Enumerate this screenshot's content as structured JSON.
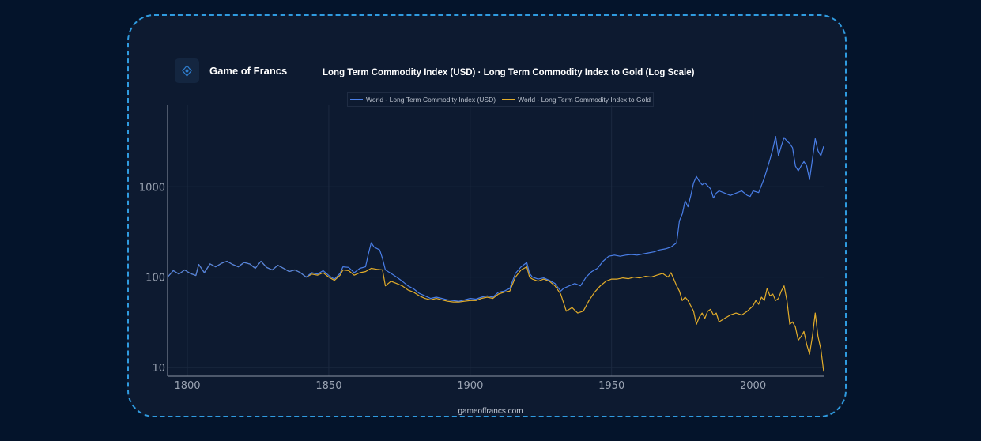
{
  "brand": {
    "name": "Game of Francs",
    "logo_icon": "compass-logo-icon",
    "footer": "gameoffrancs.com"
  },
  "colors": {
    "background": "#04142b",
    "card": "#0d1a30",
    "border": "#2f9be0",
    "usd_series": "#4a7fe8",
    "gold_series": "#e3ad2a"
  },
  "chart_data": {
    "type": "line",
    "title": "Long Term Commodity Index (USD) · Long Term Commodity Index to Gold (Log Scale)",
    "xlabel": "",
    "ylabel": "",
    "y_scale": "log",
    "xlim": [
      1793,
      2025
    ],
    "ylim": [
      8,
      8000
    ],
    "x_ticks": [
      1800,
      1850,
      1900,
      1950,
      2000
    ],
    "y_ticks": [
      10,
      100,
      1000
    ],
    "grid": true,
    "legend_position": "top",
    "series": [
      {
        "name": "World - Long Term Commodity Index (USD)",
        "color": "#4a7fe8",
        "points": [
          [
            1793,
            100
          ],
          [
            1795,
            118
          ],
          [
            1797,
            108
          ],
          [
            1799,
            120
          ],
          [
            1801,
            110
          ],
          [
            1803,
            104
          ],
          [
            1804,
            138
          ],
          [
            1806,
            112
          ],
          [
            1808,
            140
          ],
          [
            1810,
            130
          ],
          [
            1812,
            142
          ],
          [
            1814,
            150
          ],
          [
            1816,
            138
          ],
          [
            1818,
            130
          ],
          [
            1820,
            145
          ],
          [
            1822,
            140
          ],
          [
            1824,
            125
          ],
          [
            1826,
            150
          ],
          [
            1828,
            128
          ],
          [
            1830,
            120
          ],
          [
            1832,
            135
          ],
          [
            1834,
            125
          ],
          [
            1836,
            115
          ],
          [
            1838,
            120
          ],
          [
            1840,
            112
          ],
          [
            1842,
            100
          ],
          [
            1844,
            112
          ],
          [
            1846,
            108
          ],
          [
            1848,
            118
          ],
          [
            1850,
            104
          ],
          [
            1852,
            95
          ],
          [
            1854,
            110
          ],
          [
            1855,
            130
          ],
          [
            1857,
            128
          ],
          [
            1859,
            112
          ],
          [
            1861,
            125
          ],
          [
            1863,
            130
          ],
          [
            1864,
            180
          ],
          [
            1865,
            240
          ],
          [
            1866,
            215
          ],
          [
            1868,
            200
          ],
          [
            1869,
            160
          ],
          [
            1870,
            120
          ],
          [
            1872,
            110
          ],
          [
            1874,
            100
          ],
          [
            1876,
            90
          ],
          [
            1878,
            80
          ],
          [
            1880,
            74
          ],
          [
            1882,
            66
          ],
          [
            1884,
            62
          ],
          [
            1886,
            58
          ],
          [
            1888,
            60
          ],
          [
            1890,
            58
          ],
          [
            1892,
            56
          ],
          [
            1894,
            55
          ],
          [
            1896,
            54
          ],
          [
            1898,
            56
          ],
          [
            1900,
            58
          ],
          [
            1902,
            57
          ],
          [
            1904,
            60
          ],
          [
            1906,
            62
          ],
          [
            1908,
            60
          ],
          [
            1910,
            68
          ],
          [
            1912,
            70
          ],
          [
            1914,
            75
          ],
          [
            1916,
            110
          ],
          [
            1918,
            130
          ],
          [
            1920,
            145
          ],
          [
            1921,
            110
          ],
          [
            1922,
            100
          ],
          [
            1924,
            95
          ],
          [
            1926,
            98
          ],
          [
            1928,
            92
          ],
          [
            1930,
            85
          ],
          [
            1932,
            70
          ],
          [
            1933,
            75
          ],
          [
            1935,
            80
          ],
          [
            1937,
            85
          ],
          [
            1939,
            80
          ],
          [
            1941,
            100
          ],
          [
            1943,
            115
          ],
          [
            1945,
            125
          ],
          [
            1947,
            150
          ],
          [
            1949,
            170
          ],
          [
            1951,
            175
          ],
          [
            1953,
            170
          ],
          [
            1955,
            175
          ],
          [
            1957,
            178
          ],
          [
            1959,
            175
          ],
          [
            1961,
            180
          ],
          [
            1963,
            185
          ],
          [
            1965,
            190
          ],
          [
            1967,
            200
          ],
          [
            1969,
            205
          ],
          [
            1971,
            215
          ],
          [
            1973,
            240
          ],
          [
            1974,
            420
          ],
          [
            1975,
            500
          ],
          [
            1976,
            700
          ],
          [
            1977,
            600
          ],
          [
            1978,
            800
          ],
          [
            1979,
            1100
          ],
          [
            1980,
            1300
          ],
          [
            1981,
            1150
          ],
          [
            1982,
            1050
          ],
          [
            1983,
            1100
          ],
          [
            1985,
            950
          ],
          [
            1986,
            750
          ],
          [
            1987,
            850
          ],
          [
            1988,
            900
          ],
          [
            1990,
            850
          ],
          [
            1992,
            800
          ],
          [
            1994,
            850
          ],
          [
            1996,
            900
          ],
          [
            1998,
            800
          ],
          [
            1999,
            780
          ],
          [
            2000,
            900
          ],
          [
            2002,
            860
          ],
          [
            2004,
            1250
          ],
          [
            2006,
            2000
          ],
          [
            2007,
            2600
          ],
          [
            2008,
            3600
          ],
          [
            2009,
            2200
          ],
          [
            2010,
            2800
          ],
          [
            2011,
            3500
          ],
          [
            2012,
            3200
          ],
          [
            2013,
            3000
          ],
          [
            2014,
            2700
          ],
          [
            2015,
            1700
          ],
          [
            2016,
            1500
          ],
          [
            2017,
            1700
          ],
          [
            2018,
            1900
          ],
          [
            2019,
            1700
          ],
          [
            2020,
            1200
          ],
          [
            2021,
            2000
          ],
          [
            2022,
            3400
          ],
          [
            2023,
            2500
          ],
          [
            2024,
            2200
          ],
          [
            2025,
            2800
          ]
        ]
      },
      {
        "name": "World - Long Term Commodity Index to Gold",
        "color": "#e3ad2a",
        "points": [
          [
            1793,
            100
          ],
          [
            1795,
            118
          ],
          [
            1797,
            108
          ],
          [
            1799,
            120
          ],
          [
            1801,
            110
          ],
          [
            1803,
            104
          ],
          [
            1804,
            138
          ],
          [
            1806,
            112
          ],
          [
            1808,
            140
          ],
          [
            1810,
            130
          ],
          [
            1812,
            142
          ],
          [
            1814,
            150
          ],
          [
            1816,
            138
          ],
          [
            1818,
            130
          ],
          [
            1820,
            145
          ],
          [
            1822,
            140
          ],
          [
            1824,
            125
          ],
          [
            1826,
            150
          ],
          [
            1828,
            128
          ],
          [
            1830,
            120
          ],
          [
            1832,
            135
          ],
          [
            1834,
            125
          ],
          [
            1836,
            115
          ],
          [
            1838,
            120
          ],
          [
            1840,
            112
          ],
          [
            1842,
            100
          ],
          [
            1844,
            108
          ],
          [
            1846,
            105
          ],
          [
            1848,
            112
          ],
          [
            1850,
            100
          ],
          [
            1852,
            92
          ],
          [
            1854,
            105
          ],
          [
            1855,
            120
          ],
          [
            1857,
            118
          ],
          [
            1859,
            105
          ],
          [
            1861,
            112
          ],
          [
            1863,
            115
          ],
          [
            1865,
            125
          ],
          [
            1867,
            122
          ],
          [
            1869,
            120
          ],
          [
            1870,
            80
          ],
          [
            1872,
            90
          ],
          [
            1874,
            85
          ],
          [
            1876,
            80
          ],
          [
            1878,
            72
          ],
          [
            1880,
            68
          ],
          [
            1882,
            62
          ],
          [
            1884,
            58
          ],
          [
            1886,
            56
          ],
          [
            1888,
            58
          ],
          [
            1890,
            56
          ],
          [
            1892,
            54
          ],
          [
            1894,
            53
          ],
          [
            1896,
            53
          ],
          [
            1898,
            54
          ],
          [
            1900,
            55
          ],
          [
            1902,
            55
          ],
          [
            1904,
            58
          ],
          [
            1906,
            60
          ],
          [
            1908,
            58
          ],
          [
            1910,
            65
          ],
          [
            1912,
            68
          ],
          [
            1914,
            70
          ],
          [
            1916,
            100
          ],
          [
            1918,
            120
          ],
          [
            1920,
            130
          ],
          [
            1921,
            100
          ],
          [
            1922,
            95
          ],
          [
            1924,
            90
          ],
          [
            1926,
            95
          ],
          [
            1928,
            90
          ],
          [
            1930,
            80
          ],
          [
            1932,
            65
          ],
          [
            1933,
            52
          ],
          [
            1934,
            42
          ],
          [
            1936,
            46
          ],
          [
            1938,
            40
          ],
          [
            1940,
            42
          ],
          [
            1942,
            55
          ],
          [
            1944,
            68
          ],
          [
            1946,
            80
          ],
          [
            1948,
            90
          ],
          [
            1950,
            95
          ],
          [
            1952,
            95
          ],
          [
            1954,
            98
          ],
          [
            1956,
            96
          ],
          [
            1958,
            100
          ],
          [
            1960,
            98
          ],
          [
            1962,
            102
          ],
          [
            1964,
            100
          ],
          [
            1966,
            105
          ],
          [
            1968,
            110
          ],
          [
            1970,
            100
          ],
          [
            1971,
            112
          ],
          [
            1972,
            95
          ],
          [
            1973,
            80
          ],
          [
            1974,
            70
          ],
          [
            1975,
            55
          ],
          [
            1976,
            60
          ],
          [
            1977,
            55
          ],
          [
            1978,
            48
          ],
          [
            1979,
            42
          ],
          [
            1980,
            30
          ],
          [
            1981,
            36
          ],
          [
            1982,
            40
          ],
          [
            1983,
            35
          ],
          [
            1984,
            42
          ],
          [
            1985,
            44
          ],
          [
            1986,
            38
          ],
          [
            1987,
            40
          ],
          [
            1988,
            32
          ],
          [
            1990,
            35
          ],
          [
            1992,
            38
          ],
          [
            1994,
            40
          ],
          [
            1996,
            38
          ],
          [
            1998,
            42
          ],
          [
            2000,
            48
          ],
          [
            2001,
            55
          ],
          [
            2002,
            50
          ],
          [
            2003,
            60
          ],
          [
            2004,
            55
          ],
          [
            2005,
            75
          ],
          [
            2006,
            62
          ],
          [
            2007,
            65
          ],
          [
            2008,
            55
          ],
          [
            2009,
            58
          ],
          [
            2010,
            70
          ],
          [
            2011,
            80
          ],
          [
            2012,
            55
          ],
          [
            2013,
            30
          ],
          [
            2014,
            32
          ],
          [
            2015,
            28
          ],
          [
            2016,
            20
          ],
          [
            2017,
            22
          ],
          [
            2018,
            25
          ],
          [
            2019,
            18
          ],
          [
            2020,
            14
          ],
          [
            2021,
            22
          ],
          [
            2022,
            40
          ],
          [
            2023,
            22
          ],
          [
            2024,
            16
          ],
          [
            2025,
            9
          ]
        ]
      }
    ]
  }
}
